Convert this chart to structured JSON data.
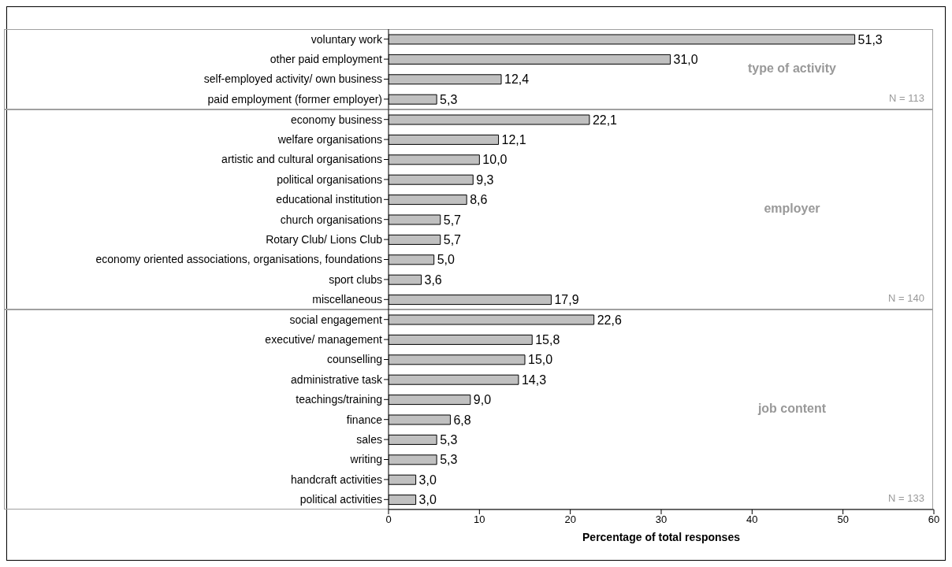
{
  "chart_data": [
    {
      "type": "bar",
      "orientation": "horizontal",
      "categories": [
        "voluntary work",
        "other paid employment",
        "self-employed activity/ own business",
        "paid employment (former employer)"
      ],
      "values": [
        51.3,
        31.0,
        12.4,
        5.3
      ],
      "value_labels": [
        "51,3",
        "31,0",
        "12,4",
        "5,3"
      ],
      "color": "#c0c0c0",
      "xlim": [
        0,
        60
      ],
      "tick_labels": "y",
      "annotations": [
        "type of activity",
        "N = 113"
      ]
    },
    {
      "type": "bar",
      "orientation": "horizontal",
      "categories": [
        "economy business",
        "welfare organisations",
        "artistic and cultural organisations",
        "political organisations",
        "educational institution",
        "church organisations",
        "Rotary Club/ Lions Club",
        "economy oriented associations, organisations, foundations",
        "sport clubs",
        "miscellaneous"
      ],
      "values": [
        22.1,
        12.1,
        10.0,
        9.3,
        8.6,
        5.7,
        5.7,
        5.0,
        3.6,
        17.9
      ],
      "value_labels": [
        "22,1",
        "12,1",
        "10,0",
        "9,3",
        "8,6",
        "5,7",
        "5,7",
        "5,0",
        "3,6",
        "17,9"
      ],
      "color": "#c0c0c0",
      "xlim": [
        0,
        60
      ],
      "tick_labels": "y",
      "annotations": [
        "employer",
        "N = 140"
      ]
    },
    {
      "type": "bar",
      "orientation": "horizontal",
      "categories": [
        "social engagement",
        "executive/ management",
        "counselling",
        "administrative task",
        "teachings/training",
        "finance",
        "sales",
        "writing",
        "handcraft activities",
        "political activities"
      ],
      "values": [
        22.6,
        15.8,
        15.0,
        14.3,
        9.0,
        6.8,
        5.3,
        5.3,
        3.0,
        3.0
      ],
      "value_labels": [
        "22,6",
        "15,8",
        "15,0",
        "14,3",
        "9,0",
        "6,8",
        "5,3",
        "5,3",
        "3,0",
        "3,0"
      ],
      "color": "#c0c0c0",
      "xlim": [
        0,
        60
      ],
      "xticks": [
        0,
        10,
        20,
        30,
        40,
        50,
        60
      ],
      "xlabel": "Percentage of total responses",
      "annotations": [
        "job content",
        "N = 133"
      ]
    }
  ]
}
